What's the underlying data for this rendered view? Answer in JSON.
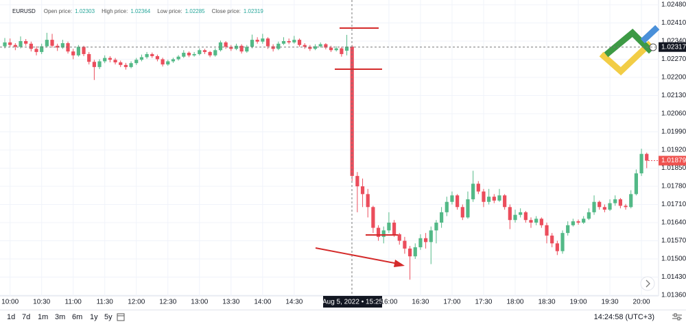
{
  "chart_data": {
    "type": "candlestick",
    "symbol": "EURUSD",
    "legend": [
      {
        "label": "Open price:",
        "value": 1.02303
      },
      {
        "label": "High price:",
        "value": 1.02364
      },
      {
        "label": "Low price:",
        "value": 1.02285
      },
      {
        "label": "Close price:",
        "value": 1.02319
      }
    ],
    "up_color": "#53b987",
    "down_color": "#eb4d5c",
    "categories": [
      null,
      "10:00",
      null,
      null,
      null,
      null,
      null,
      "10:30",
      null,
      null,
      null,
      null,
      null,
      "11:00",
      null,
      null,
      null,
      null,
      null,
      "11:30",
      null,
      null,
      null,
      null,
      null,
      "12:00",
      null,
      null,
      null,
      null,
      null,
      "12:30",
      null,
      null,
      null,
      null,
      null,
      "13:00",
      null,
      null,
      null,
      null,
      null,
      "13:30",
      null,
      null,
      null,
      null,
      null,
      "14:00",
      null,
      null,
      null,
      null,
      null,
      "14:30",
      null,
      null,
      null,
      null,
      null,
      null,
      null,
      null,
      null,
      null,
      null,
      null,
      null,
      null,
      null,
      null,
      null,
      "16:00",
      null,
      null,
      null,
      null,
      null,
      "16:30",
      null,
      null,
      null,
      null,
      null,
      "17:00",
      null,
      null,
      null,
      null,
      null,
      "17:30",
      null,
      null,
      null,
      null,
      null,
      "18:00",
      null,
      null,
      null,
      null,
      null,
      "18:30",
      null,
      null,
      null,
      null,
      null,
      "19:00",
      null,
      null,
      null,
      null,
      null,
      "19:30",
      null,
      null,
      null,
      null,
      null,
      "20:00",
      null
    ],
    "open": [
      1.0232,
      1.02335,
      1.02325,
      1.02318,
      1.0234,
      1.0233,
      1.0231,
      1.02298,
      1.0232,
      1.02345,
      1.02322,
      1.02315,
      1.02332,
      1.023,
      1.02285,
      1.02318,
      1.0229,
      1.0226,
      1.0224,
      1.02262,
      1.02275,
      1.02268,
      1.02258,
      1.02248,
      1.0224,
      1.02255,
      1.02268,
      1.02278,
      1.0229,
      1.02282,
      1.0227,
      1.0225,
      1.02262,
      1.0227,
      1.0228,
      1.02295,
      1.02285,
      1.0229,
      1.02305,
      1.02298,
      1.02285,
      1.02305,
      1.02335,
      1.02318,
      1.0231,
      1.02322,
      1.023,
      1.02318,
      1.02345,
      1.02338,
      1.0235,
      1.0232,
      1.0231,
      1.0233,
      1.0234,
      1.02335,
      1.02345,
      1.02325,
      1.02318,
      1.0231,
      1.0232,
      1.02328,
      1.02315,
      1.02305,
      1.02312,
      1.02303,
      1.02319,
      1.0182,
      1.0178,
      1.0175,
      1.017,
      1.0162,
      1.01585,
      1.0161,
      1.0164,
      1.01595,
      1.0157,
      1.0154,
      1.0151,
      1.01545,
      1.0158,
      1.01565,
      1.0161,
      1.0164,
      1.0168,
      1.0172,
      1.01745,
      1.017,
      1.0166,
      1.0173,
      1.0179,
      1.0176,
      1.0172,
      1.0174,
      1.01725,
      1.01745,
      1.017,
      1.0165,
      1.0167,
      1.0168,
      1.0165,
      1.0164,
      1.01655,
      1.0163,
      1.0159,
      1.0156,
      1.0153,
      1.016,
      1.0163,
      1.01645,
      1.0164,
      1.01655,
      1.0168,
      1.0172,
      1.017,
      1.0169,
      1.01715,
      1.0173,
      1.01705,
      1.017,
      1.0175,
      1.0183,
      1.01905
    ],
    "high": [
      1.02352,
      1.0235,
      1.02332,
      1.02358,
      1.02348,
      1.02338,
      1.0232,
      1.0233,
      1.02372,
      1.02368,
      1.0233,
      1.02345,
      1.02338,
      1.0231,
      1.02325,
      1.02322,
      1.02298,
      1.02268,
      1.0227,
      1.02285,
      1.02282,
      1.02275,
      1.02265,
      1.02256,
      1.02262,
      1.02275,
      1.02288,
      1.02298,
      1.02296,
      1.02288,
      1.02276,
      1.02268,
      1.02276,
      1.02286,
      1.02305,
      1.023,
      1.02298,
      1.02312,
      1.0231,
      1.02302,
      1.02312,
      1.02342,
      1.0234,
      1.02325,
      1.0233,
      1.02328,
      1.02325,
      1.02365,
      1.02355,
      1.02368,
      1.02355,
      1.02328,
      1.02338,
      1.02355,
      1.0235,
      1.0236,
      1.0235,
      1.02332,
      1.02325,
      1.02328,
      1.02335,
      1.02332,
      1.02322,
      1.0232,
      1.02318,
      1.02364,
      1.02325,
      1.01835,
      1.0181,
      1.0177,
      1.01705,
      1.0163,
      1.01625,
      1.0168,
      1.0165,
      1.016,
      1.01585,
      1.0155,
      1.0156,
      1.01595,
      1.016,
      1.01625,
      1.0165,
      1.017,
      1.0174,
      1.0176,
      1.0175,
      1.0171,
      1.0176,
      1.0184,
      1.018,
      1.0177,
      1.0177,
      1.0175,
      1.0177,
      1.0175,
      1.0171,
      1.0169,
      1.01695,
      1.01685,
      1.0166,
      1.01665,
      1.0166,
      1.0164,
      1.016,
      1.0157,
      1.0161,
      1.01645,
      1.01655,
      1.01652,
      1.01665,
      1.01695,
      1.01745,
      1.01725,
      1.0171,
      1.0173,
      1.01745,
      1.01735,
      1.01712,
      1.01765,
      1.01845,
      1.01925,
      1.0191
    ],
    "low": [
      1.02312,
      1.02318,
      1.02305,
      1.02312,
      1.02322,
      1.023,
      1.02285,
      1.0229,
      1.02315,
      1.02315,
      1.02302,
      1.0231,
      1.02292,
      1.0227,
      1.0228,
      1.02282,
      1.0225,
      1.0219,
      1.02232,
      1.02255,
      1.02258,
      1.0225,
      1.0224,
      1.0223,
      1.02235,
      1.02248,
      1.02262,
      1.02272,
      1.02275,
      1.02262,
      1.02242,
      1.02245,
      1.02256,
      1.02265,
      1.02275,
      1.02278,
      1.0228,
      1.02285,
      1.0229,
      1.02278,
      1.0228,
      1.023,
      1.0231,
      1.02302,
      1.02305,
      1.02292,
      1.02295,
      1.02312,
      1.0233,
      1.0233,
      1.0231,
      1.023,
      1.02305,
      1.02325,
      1.02328,
      1.0233,
      1.02318,
      1.0231,
      1.02302,
      1.02305,
      1.02315,
      1.02308,
      1.02298,
      1.023,
      1.0228,
      1.02285,
      1.018,
      1.0168,
      1.017,
      1.0166,
      1.016,
      1.0157,
      1.0156,
      1.016,
      1.01585,
      1.01555,
      1.0152,
      1.0142,
      1.015,
      1.01535,
      1.0154,
      1.0148,
      1.0156,
      1.0162,
      1.01665,
      1.0171,
      1.0169,
      1.0165,
      1.01655,
      1.0172,
      1.0175,
      1.017,
      1.0171,
      1.01715,
      1.0172,
      1.0169,
      1.01615,
      1.0164,
      1.0166,
      1.0164,
      1.0162,
      1.0163,
      1.0162,
      1.0156,
      1.01545,
      1.01515,
      1.0152,
      1.0159,
      1.01625,
      1.01632,
      1.01635,
      1.0165,
      1.0167,
      1.0169,
      1.0168,
      1.01685,
      1.01705,
      1.01695,
      1.0169,
      1.01695,
      1.01745,
      1.0182,
      1.0185
    ],
    "close": [
      1.02335,
      1.02325,
      1.02318,
      1.0234,
      1.0233,
      1.0231,
      1.02298,
      1.0232,
      1.02345,
      1.02322,
      1.02315,
      1.02332,
      1.023,
      1.02285,
      1.02318,
      1.0229,
      1.0226,
      1.0224,
      1.02262,
      1.02275,
      1.02268,
      1.02258,
      1.02248,
      1.0224,
      1.02255,
      1.02268,
      1.02278,
      1.0229,
      1.02282,
      1.0227,
      1.0225,
      1.02262,
      1.0227,
      1.0228,
      1.02295,
      1.02285,
      1.0229,
      1.02305,
      1.02298,
      1.02285,
      1.02305,
      1.02335,
      1.02318,
      1.0231,
      1.02322,
      1.023,
      1.02318,
      1.02345,
      1.02338,
      1.0235,
      1.0232,
      1.0231,
      1.0233,
      1.0234,
      1.02335,
      1.02345,
      1.02325,
      1.02318,
      1.0231,
      1.0232,
      1.02328,
      1.02315,
      1.02305,
      1.02312,
      1.0229,
      1.02319,
      1.0182,
      1.0178,
      1.0175,
      1.017,
      1.0162,
      1.01585,
      1.0161,
      1.0164,
      1.01595,
      1.0157,
      1.0154,
      1.0151,
      1.01545,
      1.0158,
      1.01565,
      1.0161,
      1.0164,
      1.0168,
      1.0172,
      1.01745,
      1.017,
      1.0166,
      1.0173,
      1.0179,
      1.0176,
      1.0172,
      1.0174,
      1.01725,
      1.01745,
      1.017,
      1.0165,
      1.0167,
      1.0168,
      1.0165,
      1.0164,
      1.01655,
      1.0163,
      1.0159,
      1.0156,
      1.0153,
      1.016,
      1.0163,
      1.01645,
      1.0164,
      1.01655,
      1.0168,
      1.0172,
      1.017,
      1.0169,
      1.01715,
      1.0173,
      1.01705,
      1.017,
      1.0175,
      1.0183,
      1.01905,
      1.01879
    ],
    "ylim": [
      1.0136,
      1.0248
    ],
    "yticks": [
      {
        "value": 1.0136,
        "label": "1.01360"
      },
      {
        "value": 1.0143,
        "label": "1.01430"
      },
      {
        "value": 1.015,
        "label": "1.01500"
      },
      {
        "value": 1.0157,
        "label": "1.01570"
      },
      {
        "value": 1.0164,
        "label": "1.01640"
      },
      {
        "value": 1.0171,
        "label": "1.01710"
      },
      {
        "value": 1.0178,
        "label": "1.01780"
      },
      {
        "value": 1.0185,
        "label": "1.01850"
      },
      {
        "value": 1.0192,
        "label": "1.01920"
      },
      {
        "value": 1.0199,
        "label": "1.01990"
      },
      {
        "value": 1.0206,
        "label": "1.02060"
      },
      {
        "value": 1.0213,
        "label": "1.02130"
      },
      {
        "value": 1.022,
        "label": "1.02200"
      },
      {
        "value": 1.0227,
        "label": "1.02270"
      },
      {
        "value": 1.0234,
        "label": "1.02340"
      },
      {
        "value": 1.0241,
        "label": "1.02410"
      },
      {
        "value": 1.0248,
        "label": "1.02480"
      }
    ],
    "grid": true,
    "crosshair": {
      "price": 1.02317,
      "time_label": "Aug 5, 2022 • 15:25"
    },
    "last_price": 1.01879
  },
  "toolbar": {
    "ranges": [
      "1d",
      "7d",
      "1m",
      "3m",
      "6m",
      "1y",
      "5y"
    ],
    "clock": "14:24:58 (UTC+3)"
  }
}
